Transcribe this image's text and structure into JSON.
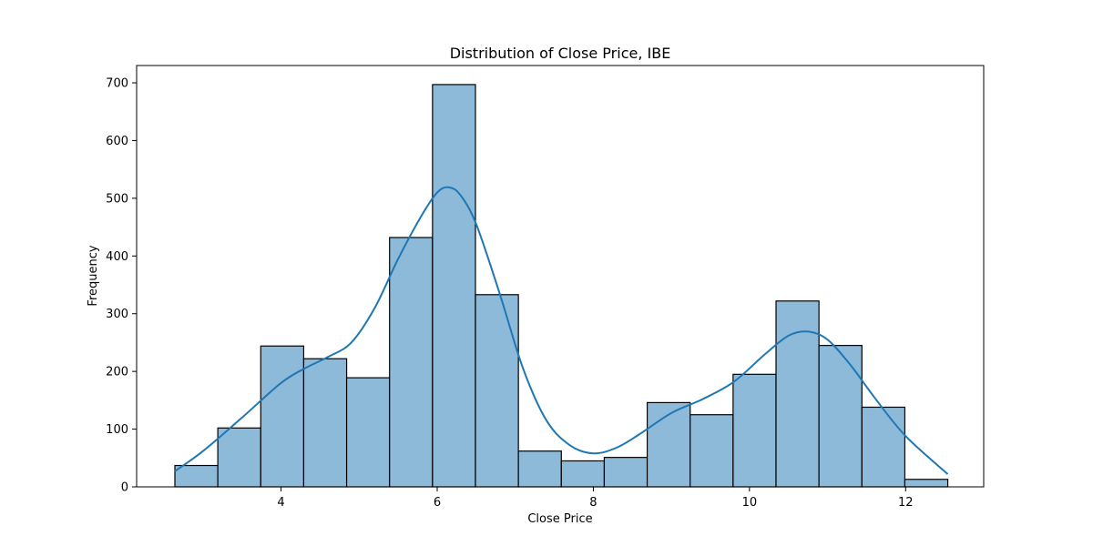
{
  "chart_data": {
    "type": "bar",
    "title": "Distribution of Close Price, IBE",
    "xlabel": "Close Price",
    "ylabel": "Frequency",
    "xlim": [
      2.15,
      13.0
    ],
    "ylim": [
      0,
      730
    ],
    "xticks": [
      4,
      6,
      8,
      10,
      12
    ],
    "yticks": [
      0,
      100,
      200,
      300,
      400,
      500,
      600,
      700
    ],
    "bin_edges": [
      2.64,
      3.19,
      3.74,
      4.29,
      4.84,
      5.39,
      5.94,
      6.49,
      7.04,
      7.59,
      8.14,
      8.69,
      9.24,
      9.79,
      10.34,
      10.89,
      11.44,
      11.99,
      12.54
    ],
    "values": [
      37,
      102,
      244,
      222,
      189,
      432,
      697,
      333,
      62,
      45,
      51,
      146,
      125,
      195,
      322,
      245,
      138,
      13
    ],
    "kde": {
      "x": [
        2.64,
        3.0,
        3.5,
        4.0,
        4.3,
        4.6,
        4.9,
        5.2,
        5.5,
        5.8,
        6.0,
        6.15,
        6.3,
        6.5,
        6.8,
        7.1,
        7.4,
        7.7,
        8.0,
        8.3,
        8.6,
        9.0,
        9.4,
        9.8,
        10.2,
        10.5,
        10.75,
        11.0,
        11.3,
        11.6,
        12.0,
        12.54
      ],
      "y": [
        27,
        62,
        120,
        180,
        205,
        225,
        250,
        310,
        395,
        470,
        510,
        519,
        505,
        455,
        335,
        205,
        115,
        72,
        58,
        68,
        92,
        128,
        152,
        182,
        230,
        262,
        269,
        255,
        210,
        155,
        88,
        22
      ]
    },
    "bar_color": "#8ebad9",
    "bar_edge_color": "#000000",
    "line_color": "#1f77b4",
    "grid": false,
    "legend": "none"
  }
}
